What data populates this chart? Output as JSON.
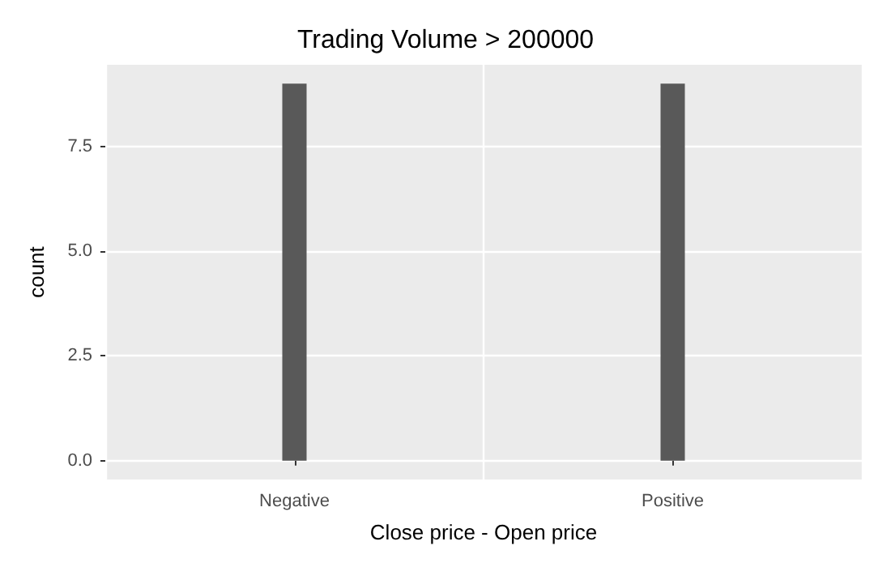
{
  "chart_data": {
    "type": "bar",
    "title": "Trading Volume > 200000",
    "xlabel": "Close price - Open price",
    "ylabel": "count",
    "categories": [
      "Negative",
      "Positive"
    ],
    "values": [
      9,
      9
    ],
    "color": "#595959",
    "ylim": [
      -0.45,
      9.45
    ],
    "yticks": [
      {
        "value": 0,
        "label": "0.0"
      },
      {
        "value": 2.5,
        "label": "2.5"
      },
      {
        "value": 5,
        "label": "5.0"
      },
      {
        "value": 7.5,
        "label": "7.5"
      }
    ],
    "grid": true
  }
}
